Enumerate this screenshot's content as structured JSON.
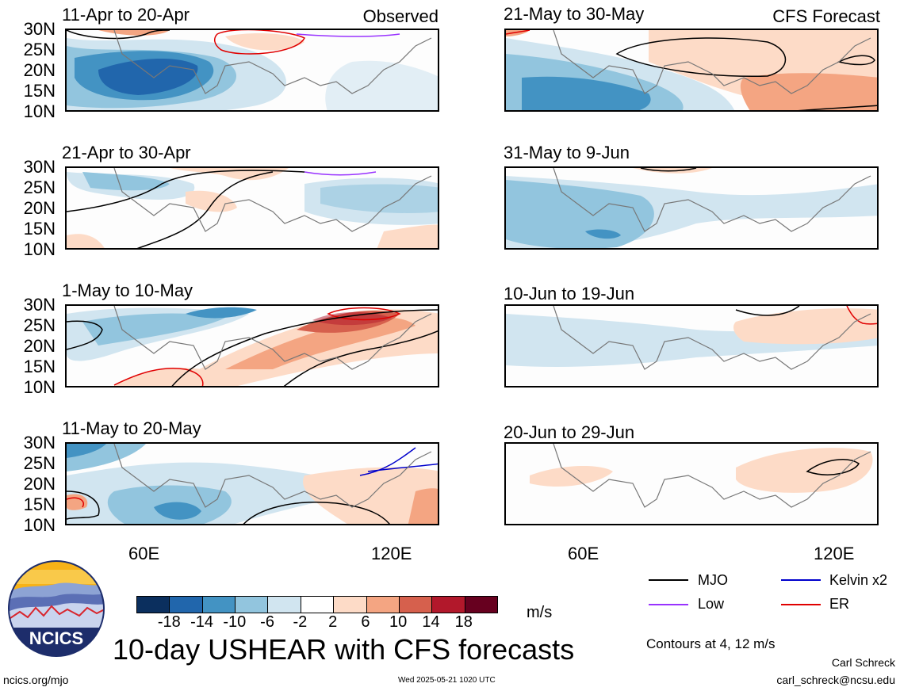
{
  "panels": [
    {
      "title": "11-Apr to 20-Apr",
      "label": "Observed"
    },
    {
      "title": "21-May to 30-May",
      "label": "CFS Forecast"
    },
    {
      "title": "21-Apr to 30-Apr",
      "label": ""
    },
    {
      "title": "31-May to 9-Jun",
      "label": ""
    },
    {
      "title": "1-May to 10-May",
      "label": ""
    },
    {
      "title": "10-Jun to 19-Jun",
      "label": ""
    },
    {
      "title": "11-May to 20-May",
      "label": ""
    },
    {
      "title": "20-Jun to 29-Jun",
      "label": ""
    }
  ],
  "lat_labels": [
    "30N",
    "25N",
    "20N",
    "15N",
    "10N"
  ],
  "lon_labels": [
    "60E",
    "120E"
  ],
  "colorbar": {
    "colors": [
      "#0b2f5e",
      "#2166ac",
      "#4393c3",
      "#92c5de",
      "#d1e5f0",
      "#ffffff",
      "#fddbc7",
      "#f4a582",
      "#d6604d",
      "#b2182b",
      "#67001f"
    ],
    "labels": [
      "-18",
      "-14",
      "-10",
      "-6",
      "-2",
      "2",
      "6",
      "10",
      "14",
      "18"
    ],
    "units": "m/s"
  },
  "legend": {
    "mjo": {
      "label": "MJO",
      "color": "#000000"
    },
    "kelvin": {
      "label": "Kelvin x2",
      "color": "#0000cc"
    },
    "low": {
      "label": "Low",
      "color": "#9933ff"
    },
    "er": {
      "label": "ER",
      "color": "#e00000"
    },
    "contours": "Contours at 4, 12 m/s"
  },
  "footer": {
    "title": "10-day USHEAR with CFS forecasts",
    "logo_text": "NCICS",
    "url": "ncics.org/mjo",
    "timestamp": "Wed 2025-05-21 1020 UTC",
    "author": "Carl Schreck",
    "email": "carl_schreck@ncsu.edu"
  }
}
